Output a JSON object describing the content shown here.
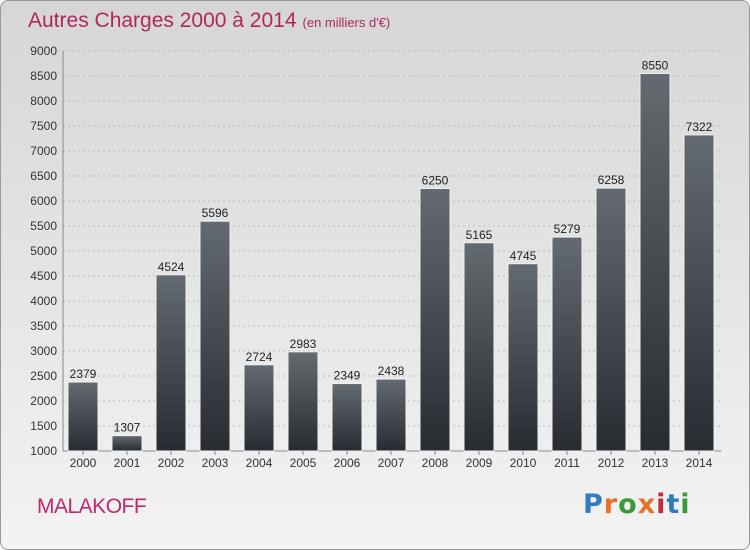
{
  "header": {
    "title": "Autres Charges 2000 à 2014",
    "unit": "(en milliers d'€)"
  },
  "footer": {
    "commune": "MALAKOFF",
    "logo": "Proxiti"
  },
  "colors": {
    "title": "#b0285a",
    "bar_top": "#646a71",
    "bar_bottom": "#272c31",
    "logo": [
      "#2f7dc0",
      "#e8702a",
      "#3a9a3a",
      "#e8702a",
      "#c8283c",
      "#2f7dc0",
      "#3a9a3a"
    ]
  },
  "chart_data": {
    "type": "bar",
    "title": "Autres Charges 2000 à 2014",
    "subtitle": "(en milliers d'€)",
    "categories": [
      "2000",
      "2001",
      "2002",
      "2003",
      "2004",
      "2005",
      "2006",
      "2007",
      "2008",
      "2009",
      "2010",
      "2011",
      "2012",
      "2013",
      "2014"
    ],
    "values": [
      2379,
      1307,
      4524,
      5596,
      2724,
      2983,
      2349,
      2438,
      6250,
      5165,
      4745,
      5279,
      6258,
      8550,
      7322
    ],
    "ylim": [
      1000,
      9000
    ],
    "yticks": [
      1000,
      1500,
      2000,
      2500,
      3000,
      3500,
      4000,
      4500,
      5000,
      5500,
      6000,
      6500,
      7000,
      7500,
      8000,
      8500,
      9000
    ],
    "grid": true,
    "data_labels": true
  }
}
